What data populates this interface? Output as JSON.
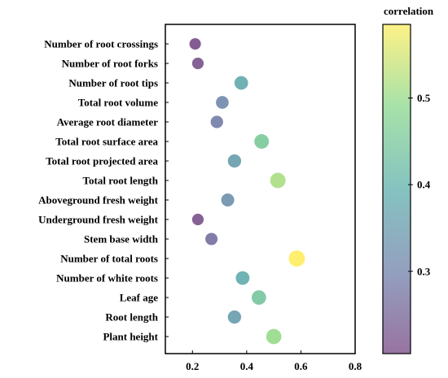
{
  "chart_data": {
    "type": "scatter",
    "categories": [
      "Number of root crossings",
      "Number of root forks",
      "Number of root tips",
      "Total root volume",
      "Average root diameter",
      "Total root surface area",
      "Total root projected area",
      "Total root length",
      "Aboveground fresh weight",
      "Underground fresh weight",
      "Stem base width",
      "Number of total roots",
      "Number of white roots",
      "Leaf age",
      "Root length",
      "Plant height"
    ],
    "values": [
      0.21,
      0.22,
      0.38,
      0.31,
      0.29,
      0.455,
      0.355,
      0.515,
      0.33,
      0.22,
      0.27,
      0.585,
      0.385,
      0.445,
      0.355,
      0.5
    ],
    "xlim": [
      0.1,
      0.8
    ],
    "x_ticks": [
      "0.2",
      "0.4",
      "0.6",
      "0.8"
    ],
    "colorbar": {
      "title": "correlation",
      "range": [
        0.205,
        0.585
      ],
      "ticks": [
        "0.3",
        "0.4",
        "0.5"
      ],
      "colormap": "viridis"
    },
    "marker_alpha": 0.65,
    "grid": false
  }
}
